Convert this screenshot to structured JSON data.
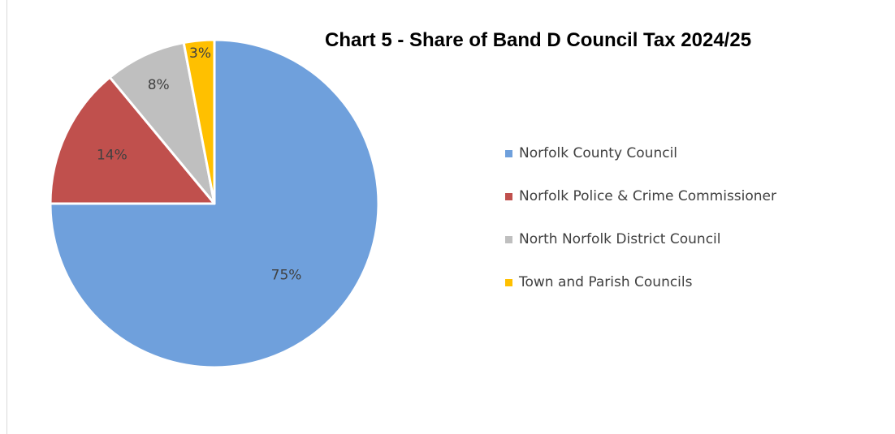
{
  "chart_data": {
    "type": "pie",
    "title": "Chart 5 - Share of Band D Council Tax 2024/25",
    "start_angle_deg": 0,
    "direction": "clockwise",
    "legend_position": "right",
    "slices": [
      {
        "label": "Norfolk County Council",
        "value": 75,
        "display": "75%",
        "color": "#6FA0DC"
      },
      {
        "label": "Norfolk Police & Crime Commissioner",
        "value": 14,
        "display": "14%",
        "color": "#C0504D"
      },
      {
        "label": "North Norfolk District Council",
        "value": 8,
        "display": "8%",
        "color": "#BFBFBF"
      },
      {
        "label": "Town and Parish Councils",
        "value": 3,
        "display": "3%",
        "color": "#FFC000"
      }
    ]
  }
}
